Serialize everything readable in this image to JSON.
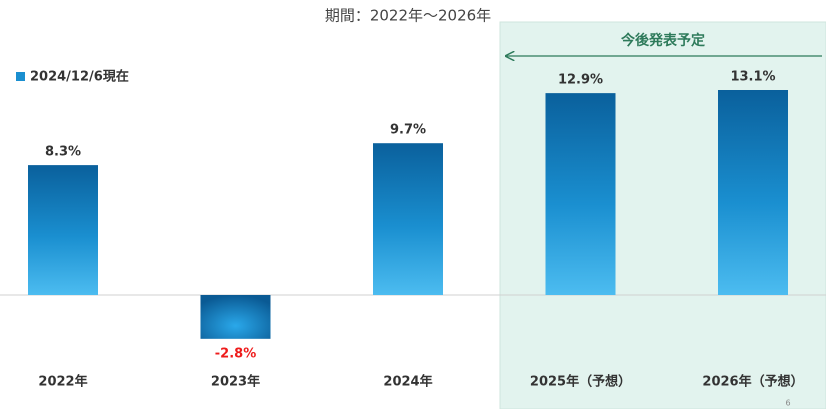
{
  "chart_data": {
    "type": "bar",
    "title": "期間：2022年～2026年",
    "categories": [
      "2022年",
      "2023年",
      "2024年",
      "2025年（予想）",
      "2026年（予想）"
    ],
    "series": [
      {
        "name": "2024/12/6現在",
        "color": "#1a8fd0",
        "values": [
          8.3,
          -2.8,
          9.7,
          12.9,
          13.1
        ],
        "value_labels": [
          "8.3%",
          "-2.8%",
          "9.7%",
          "12.9%",
          "13.1%"
        ]
      }
    ],
    "negative_label_color": "#ee1c1c",
    "annotation": "今後発表予定"
  },
  "page_number": "6"
}
